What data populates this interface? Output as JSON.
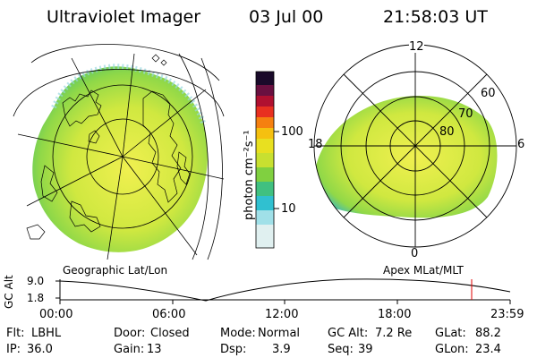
{
  "header": {
    "instrument": "Ultraviolet Imager",
    "date": "03 Jul 00",
    "time": "21:58:03 UT"
  },
  "colorbar": {
    "unit_label": "photon cm⁻²s⁻¹",
    "ticks": [
      "100",
      "10"
    ],
    "colors": [
      "#1a0a2a",
      "#6a1040",
      "#b01030",
      "#e83020",
      "#f58010",
      "#f5c010",
      "#e8e020",
      "#c8e030",
      "#80d040",
      "#40c080",
      "#30c0d0",
      "#a0e0e8",
      "#e0f0f0"
    ]
  },
  "geo_map": {
    "label": "Geographic Lat/Lon"
  },
  "polar_plot": {
    "label": "Apex MLat/MLT",
    "mlt_labels": {
      "top": "12",
      "left": "18",
      "right": "6",
      "bottom": "0"
    },
    "lat_labels": [
      "60",
      "70",
      "80"
    ]
  },
  "altitude_strip": {
    "axis_label": "GC Alt",
    "y_ticks": [
      "9.0",
      "1.8"
    ],
    "x_ticks": [
      "00:00",
      "06:00",
      "12:00",
      "18:00",
      "23:59"
    ],
    "current_marker_hour": 21.97
  },
  "info": {
    "filter_label": "Flt:",
    "filter_value": "LBHL",
    "ip_label": "IP:",
    "ip_value": "36.0",
    "door_label": "Door:",
    "door_value": "Closed",
    "gain_label": "Gain:",
    "gain_value": "13",
    "mode_label": "Mode:",
    "mode_value": "Normal",
    "dsp_label": "Dsp:",
    "dsp_value": "3.9",
    "gcalt_label": "GC Alt:",
    "gcalt_value": "7.2 Re",
    "seq_label": "Seq:",
    "seq_value": "39",
    "glat_label": "GLat:",
    "glat_value": "88.2",
    "glon_label": "GLon:",
    "glon_value": "23.4"
  }
}
